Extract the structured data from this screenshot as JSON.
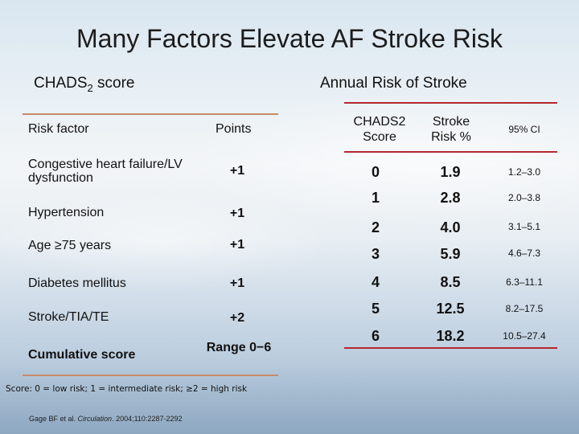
{
  "title": "Many Factors Elevate AF Stroke Risk",
  "left": {
    "heading": "CHADS",
    "heading_sub": "2",
    "heading_tail": " score",
    "col_factor": "Risk factor",
    "col_points": "Points",
    "rows": [
      {
        "factor": "Congestive heart failure/LV dysfunction",
        "points": "+1"
      },
      {
        "factor": "Hypertension",
        "points": "+1"
      },
      {
        "factor": "Age ≥75 years",
        "points": "+1"
      },
      {
        "factor": "Diabetes mellitus",
        "points": "+1"
      },
      {
        "factor": "Stroke/TIA/TE",
        "points": "+2"
      },
      {
        "factor": "Cumulative score",
        "points": "Range 0−6"
      }
    ],
    "footnote": "Score: 0 = low risk; 1 = intermediate risk; ≥2 = high risk"
  },
  "right": {
    "heading": "Annual Risk of Stroke",
    "col_score": "CHADS2 Score",
    "col_risk": "Stroke Risk %",
    "col_ci": "95% CI",
    "rows": [
      {
        "score": "0",
        "risk": "1.9",
        "ci": "1.2–3.0"
      },
      {
        "score": "1",
        "risk": "2.8",
        "ci": "2.0–3.8"
      },
      {
        "score": "2",
        "risk": "4.0",
        "ci": "3.1–5.1"
      },
      {
        "score": "3",
        "risk": "5.9",
        "ci": "4.6–7.3"
      },
      {
        "score": "4",
        "risk": "8.5",
        "ci": "6.3–11.1"
      },
      {
        "score": "5",
        "risk": "12.5",
        "ci": "8.2–17.5"
      },
      {
        "score": "6",
        "risk": "18.2",
        "ci": "10.5–27.4"
      }
    ]
  },
  "citation": {
    "authors": "Gage BF et al. ",
    "journal": "Circulation",
    "details": ". 2004;110:2287-2292"
  }
}
